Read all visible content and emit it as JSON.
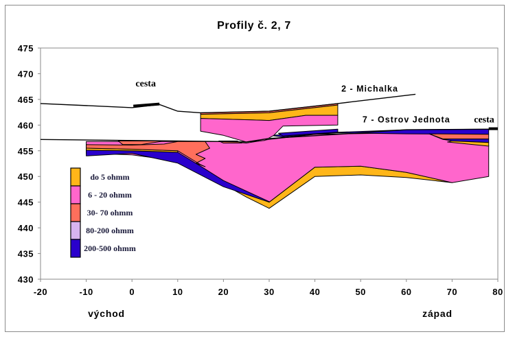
{
  "chart_data": {
    "type": "area",
    "title": "Profily č. 2, 7",
    "xlabel_left": "východ",
    "xlabel_right": "západ",
    "xlim": [
      -20,
      80
    ],
    "ylim": [
      430,
      475
    ],
    "xticks": [
      -20,
      -10,
      0,
      10,
      20,
      30,
      40,
      50,
      60,
      70,
      80
    ],
    "yticks": [
      430,
      435,
      440,
      445,
      450,
      455,
      460,
      465,
      470,
      475
    ],
    "grid": false,
    "colors": {
      "do5": "#FFB619",
      "r6_20": "#FF66CC",
      "r30_70": "#FF6F5C",
      "r80_200": "#D8B4F0",
      "r200_500": "#2A00CC",
      "line": "#000000"
    },
    "legend": {
      "position": "left",
      "items": [
        {
          "key": "do5",
          "label": "do 5 ohmm"
        },
        {
          "key": "r6_20",
          "label": "6 - 20 ohmm"
        },
        {
          "key": "r30_70",
          "label": "30- 70 ohmm"
        },
        {
          "key": "r80_200",
          "label": "80-200 ohmm"
        },
        {
          "key": "r200_500",
          "label": "200-500 ohmm"
        }
      ]
    },
    "annotations": [
      {
        "text": "cesta",
        "x": 3,
        "y": 467.5,
        "style": "serif"
      },
      {
        "text": "2 - Michalka",
        "x": 52,
        "y": 466.5,
        "style": "sans"
      },
      {
        "text": "7 - Ostrov Jednota",
        "x": 60,
        "y": 460.5,
        "style": "sans"
      },
      {
        "text": "cesta",
        "x": 77,
        "y": 460.5,
        "style": "serif"
      }
    ],
    "surface_lines": [
      {
        "name": "profile-2-surface",
        "points": [
          [
            -20,
            464.2
          ],
          [
            0,
            463.4
          ],
          [
            6,
            464.0
          ],
          [
            10,
            462.7
          ],
          [
            15,
            462.4
          ],
          [
            30,
            462.7
          ],
          [
            45,
            464.2
          ],
          [
            62,
            466.0
          ]
        ]
      },
      {
        "name": "profile-7-surface",
        "points": [
          [
            -20,
            457.2
          ],
          [
            20,
            456.8
          ],
          [
            25,
            456.7
          ],
          [
            30,
            457.4
          ],
          [
            45,
            458.2
          ],
          [
            60,
            459.1
          ],
          [
            78,
            459.2
          ],
          [
            80,
            459.2
          ]
        ]
      }
    ],
    "road_marks": [
      {
        "name": "road-mark-left",
        "points": [
          [
            0.3,
            463.7
          ],
          [
            6,
            464.1
          ]
        ]
      },
      {
        "name": "road-mark-right",
        "points": [
          [
            78,
            459.3
          ],
          [
            80,
            459.3
          ]
        ]
      }
    ],
    "series": [
      {
        "name": "p7-conductive-base",
        "key": "do5",
        "points": [
          [
            20,
            448.5
          ],
          [
            25,
            446
          ],
          [
            30,
            443.8
          ],
          [
            40,
            450
          ],
          [
            50,
            450.3
          ],
          [
            60,
            449.8
          ],
          [
            70,
            448.8
          ],
          [
            60,
            450.8
          ],
          [
            50,
            452
          ],
          [
            40,
            451.8
          ],
          [
            30,
            445
          ],
          [
            25,
            447
          ]
        ]
      },
      {
        "name": "p7-main-body",
        "key": "r6_20",
        "points": [
          [
            -10,
            456.8
          ],
          [
            20,
            456.8
          ],
          [
            25,
            456.5
          ],
          [
            30,
            457.2
          ],
          [
            40,
            458.2
          ],
          [
            60,
            458.5
          ],
          [
            65,
            458.3
          ],
          [
            68,
            457.2
          ],
          [
            78,
            456
          ],
          [
            78,
            450
          ],
          [
            70,
            448.8
          ],
          [
            60,
            450.8
          ],
          [
            50,
            452
          ],
          [
            40,
            451.8
          ],
          [
            30,
            445
          ],
          [
            24,
            447.5
          ],
          [
            20,
            449
          ],
          [
            10,
            453
          ],
          [
            0,
            454.2
          ],
          [
            -10,
            454.5
          ]
        ]
      },
      {
        "name": "p7-resistive-bottom-left",
        "key": "r200_500",
        "points": [
          [
            -10,
            455.1
          ],
          [
            0,
            455
          ],
          [
            10,
            454.7
          ],
          [
            15,
            452
          ],
          [
            20,
            449.2
          ],
          [
            30,
            445.1
          ],
          [
            30,
            445
          ],
          [
            24,
            446.8
          ],
          [
            20,
            448
          ],
          [
            10,
            452.6
          ],
          [
            0,
            454.5
          ],
          [
            -10,
            454
          ]
        ]
      },
      {
        "name": "p7-thin-conductive-left",
        "key": "do5",
        "points": [
          [
            -10,
            455.5
          ],
          [
            0,
            455.3
          ],
          [
            10,
            455
          ],
          [
            10,
            454.7
          ],
          [
            0,
            455
          ],
          [
            -10,
            455.1
          ]
        ]
      },
      {
        "name": "p7-mid-resistivity-left",
        "key": "r30_70",
        "points": [
          [
            -10,
            456.2
          ],
          [
            0,
            456.1
          ],
          [
            7,
            456.3
          ],
          [
            10,
            456.8
          ],
          [
            16,
            456.8
          ],
          [
            17,
            455.5
          ],
          [
            14,
            454.3
          ],
          [
            16,
            453.5
          ],
          [
            14,
            452.6
          ],
          [
            16,
            451.9
          ],
          [
            15,
            452.3
          ],
          [
            10,
            455
          ],
          [
            0,
            455.3
          ],
          [
            -10,
            455.5
          ]
        ]
      },
      {
        "name": "p7-mid-resistivity-top",
        "key": "r30_70",
        "points": [
          [
            -3,
            456.9
          ],
          [
            7,
            456.9
          ],
          [
            2,
            456.2
          ],
          [
            -2,
            456.2
          ]
        ]
      },
      {
        "name": "p7-mid-resistivity-top2",
        "key": "r30_70",
        "points": [
          [
            19,
            456.9
          ],
          [
            23,
            456.9
          ],
          [
            24,
            456.5
          ],
          [
            20,
            456.5
          ]
        ]
      },
      {
        "name": "p7-resistive-top",
        "key": "r200_500",
        "points": [
          [
            30,
            458
          ],
          [
            45,
            458.6
          ],
          [
            60,
            459.1
          ],
          [
            78,
            459.2
          ],
          [
            78,
            458.2
          ],
          [
            60,
            458.3
          ],
          [
            45,
            458.5
          ],
          [
            40,
            458.2
          ],
          [
            33,
            457.7
          ]
        ]
      },
      {
        "name": "p7-mid-resistivity-right",
        "key": "r30_70",
        "points": [
          [
            65,
            458.3
          ],
          [
            78,
            458.2
          ],
          [
            78,
            457.3
          ],
          [
            68,
            457.3
          ]
        ]
      },
      {
        "name": "p7-resistive-right",
        "key": "r200_500",
        "points": [
          [
            68,
            457.3
          ],
          [
            78,
            457.3
          ],
          [
            78,
            456.6
          ],
          [
            70,
            456.9
          ]
        ]
      },
      {
        "name": "p7-conductive-right",
        "key": "do5",
        "points": [
          [
            70,
            456.9
          ],
          [
            78,
            456.6
          ],
          [
            78,
            455.9
          ],
          [
            69,
            456.7
          ]
        ]
      },
      {
        "name": "p2-top-thin",
        "key": "r30_70",
        "points": [
          [
            15,
            462.4
          ],
          [
            30,
            462.7
          ],
          [
            45,
            464.2
          ],
          [
            45,
            463.9
          ],
          [
            30,
            462.4
          ],
          [
            15,
            462.1
          ]
        ]
      },
      {
        "name": "p2-conductive-layer",
        "key": "do5",
        "points": [
          [
            15,
            462.1
          ],
          [
            30,
            462.4
          ],
          [
            45,
            463.9
          ],
          [
            45,
            461.9
          ],
          [
            38,
            461.9
          ],
          [
            30,
            460.9
          ],
          [
            15,
            461.3
          ]
        ]
      },
      {
        "name": "p2-main-body",
        "key": "r6_20",
        "points": [
          [
            15,
            461.3
          ],
          [
            30,
            460.9
          ],
          [
            38,
            461.9
          ],
          [
            45,
            461.9
          ],
          [
            45,
            460
          ],
          [
            33,
            459.8
          ],
          [
            31,
            458
          ],
          [
            29,
            457
          ],
          [
            25,
            456.7
          ],
          [
            20,
            458
          ],
          [
            15,
            458.8
          ]
        ]
      },
      {
        "name": "p2-resistive-lens",
        "key": "r200_500",
        "points": [
          [
            32,
            458.4
          ],
          [
            45,
            459.2
          ],
          [
            45,
            458.6
          ],
          [
            33,
            457.9
          ]
        ]
      }
    ]
  }
}
